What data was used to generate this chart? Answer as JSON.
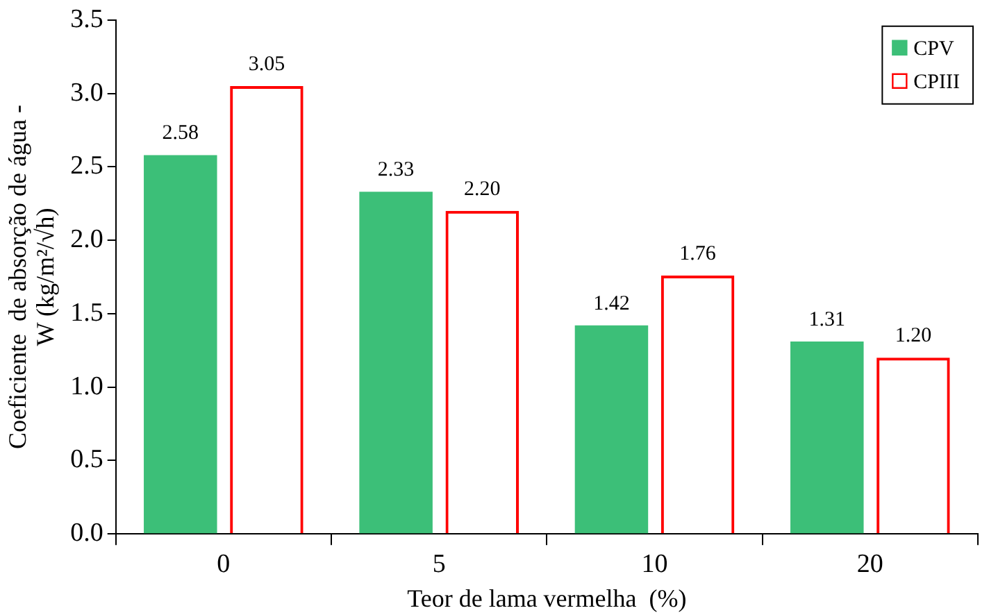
{
  "chart_data": {
    "type": "bar",
    "xlabel": "Teor de lama vermelha  (%)",
    "ylabel": "Coeficiente  de absorção de água -\nW (kg/m²/√h)",
    "categories": [
      "0",
      "5",
      "10",
      "20"
    ],
    "series": [
      {
        "name": "CPV",
        "color": "#3cbf78",
        "values": [
          2.58,
          2.33,
          1.42,
          1.31
        ],
        "value_labels": [
          "2.58",
          "2.33",
          "1.42",
          "1.31"
        ]
      },
      {
        "name": "CPIII",
        "color": "#ff0000",
        "values": [
          3.05,
          2.2,
          1.76,
          1.2
        ],
        "value_labels": [
          "3.05",
          "2.20",
          "1.76",
          "1.20"
        ]
      }
    ],
    "ylim": [
      0,
      3.5
    ],
    "yticks": [
      {
        "value": 0,
        "label": "0.0"
      },
      {
        "value": 0.5,
        "label": "0.5"
      },
      {
        "value": 1,
        "label": "1.0"
      },
      {
        "value": 1.5,
        "label": "1.5"
      },
      {
        "value": 2,
        "label": "2.0"
      },
      {
        "value": 2.5,
        "label": "2.5"
      },
      {
        "value": 3,
        "label": "3.0"
      },
      {
        "value": 3.5,
        "label": "3.5"
      }
    ],
    "grid": false,
    "legend": "top right"
  }
}
